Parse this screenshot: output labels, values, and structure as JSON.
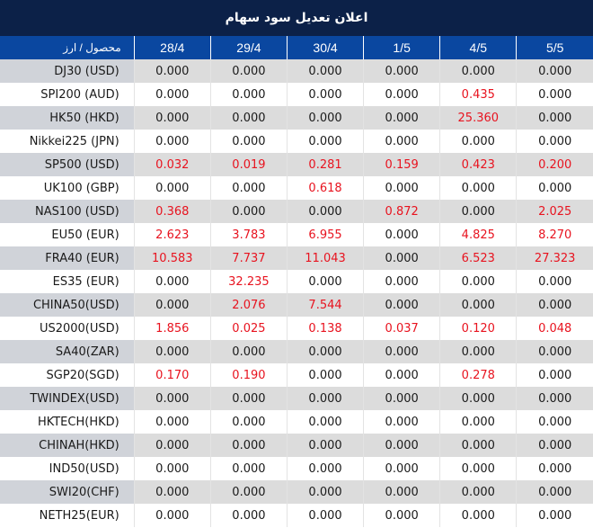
{
  "title": "اعلان تعدیل سود سهام",
  "header": {
    "product_label": "محصول / ارز",
    "dates": [
      "28/4",
      "29/4",
      "30/4",
      "1/5",
      "4/5",
      "5/5"
    ]
  },
  "colors": {
    "title_bg": "#0c2148",
    "header_bg": "#0a47a0",
    "highlight_value": "#e8131f",
    "row_gray": "#dcdcdc",
    "first_col_gray": "#d0d3d9"
  },
  "rows": [
    {
      "product": "DJ30 (USD)",
      "values": [
        "0.000",
        "0.000",
        "0.000",
        "0.000",
        "0.000",
        "0.000"
      ]
    },
    {
      "product": "SPI200 (AUD)",
      "values": [
        "0.000",
        "0.000",
        "0.000",
        "0.000",
        "0.435",
        "0.000"
      ]
    },
    {
      "product": "HK50 (HKD)",
      "values": [
        "0.000",
        "0.000",
        "0.000",
        "0.000",
        "25.360",
        "0.000"
      ]
    },
    {
      "product": "Nikkei225 (JPN)",
      "values": [
        "0.000",
        "0.000",
        "0.000",
        "0.000",
        "0.000",
        "0.000"
      ]
    },
    {
      "product": "SP500 (USD)",
      "values": [
        "0.032",
        "0.019",
        "0.281",
        "0.159",
        "0.423",
        "0.200"
      ]
    },
    {
      "product": "UK100 (GBP)",
      "values": [
        "0.000",
        "0.000",
        "0.618",
        "0.000",
        "0.000",
        "0.000"
      ]
    },
    {
      "product": "NAS100 (USD)",
      "values": [
        "0.368",
        "0.000",
        "0.000",
        "0.872",
        "0.000",
        "2.025"
      ]
    },
    {
      "product": "EU50 (EUR)",
      "values": [
        "2.623",
        "3.783",
        "6.955",
        "0.000",
        "4.825",
        "8.270"
      ]
    },
    {
      "product": "FRA40 (EUR)",
      "values": [
        "10.583",
        "7.737",
        "11.043",
        "0.000",
        "6.523",
        "27.323"
      ]
    },
    {
      "product": "ES35 (EUR)",
      "values": [
        "0.000",
        "32.235",
        "0.000",
        "0.000",
        "0.000",
        "0.000"
      ]
    },
    {
      "product": "CHINA50(USD)",
      "values": [
        "0.000",
        "2.076",
        "7.544",
        "0.000",
        "0.000",
        "0.000"
      ]
    },
    {
      "product": "US2000(USD)",
      "values": [
        "1.856",
        "0.025",
        "0.138",
        "0.037",
        "0.120",
        "0.048"
      ]
    },
    {
      "product": "SA40(ZAR)",
      "values": [
        "0.000",
        "0.000",
        "0.000",
        "0.000",
        "0.000",
        "0.000"
      ]
    },
    {
      "product": "SGP20(SGD)",
      "values": [
        "0.170",
        "0.190",
        "0.000",
        "0.000",
        "0.278",
        "0.000"
      ]
    },
    {
      "product": "TWINDEX(USD)",
      "values": [
        "0.000",
        "0.000",
        "0.000",
        "0.000",
        "0.000",
        "0.000"
      ]
    },
    {
      "product": "HKTECH(HKD)",
      "values": [
        "0.000",
        "0.000",
        "0.000",
        "0.000",
        "0.000",
        "0.000"
      ]
    },
    {
      "product": "CHINAH(HKD)",
      "values": [
        "0.000",
        "0.000",
        "0.000",
        "0.000",
        "0.000",
        "0.000"
      ]
    },
    {
      "product": "IND50(USD)",
      "values": [
        "0.000",
        "0.000",
        "0.000",
        "0.000",
        "0.000",
        "0.000"
      ]
    },
    {
      "product": "SWI20(CHF)",
      "values": [
        "0.000",
        "0.000",
        "0.000",
        "0.000",
        "0.000",
        "0.000"
      ]
    },
    {
      "product": "NETH25(EUR)",
      "values": [
        "0.000",
        "0.000",
        "0.000",
        "0.000",
        "0.000",
        "0.000"
      ]
    }
  ]
}
